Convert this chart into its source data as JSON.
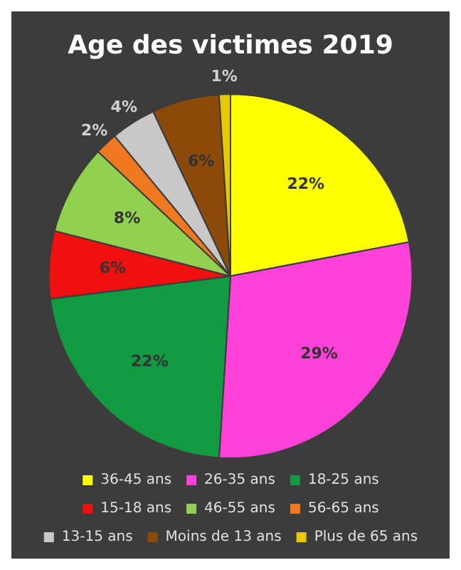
{
  "chart_data": {
    "type": "pie",
    "title": "Age des victimes 2019",
    "categories": [
      "36-45 ans",
      "26-35 ans",
      "18-25 ans",
      "15-18 ans",
      "46-55 ans",
      "56-65 ans",
      "13-15 ans",
      "Moins de 13 ans",
      "Plus de 65 ans"
    ],
    "values": [
      22,
      29,
      22,
      6,
      8,
      2,
      4,
      6,
      1
    ],
    "colors": [
      "#ffff00",
      "#ff40d9",
      "#129a42",
      "#f01010",
      "#92d050",
      "#f07820",
      "#c8c8c8",
      "#8b4a0a",
      "#e8c800"
    ],
    "value_labels": [
      "22%",
      "29%",
      "22%",
      "6%",
      "8%",
      "2%",
      "4%",
      "6%",
      "1%"
    ],
    "legend": "bottom"
  }
}
